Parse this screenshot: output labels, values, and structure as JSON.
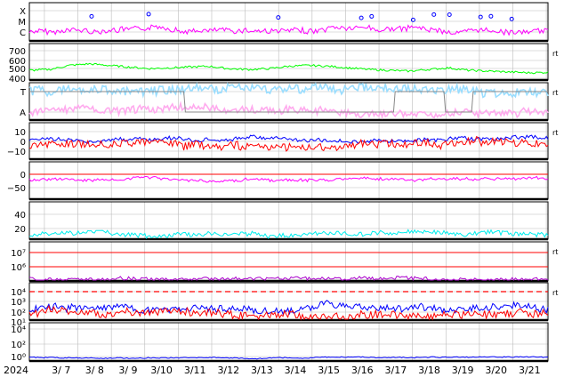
{
  "colors": {
    "magenta": "#ff00ff",
    "green": "#00ff00",
    "lightblue": "#99ddff",
    "pink": "#ffaaee",
    "gray": "#888888",
    "blue": "#0000ff",
    "red": "#ff0000",
    "cyan": "#00eeee",
    "purple": "#aa00cc",
    "grid": "#bbbbbb"
  },
  "chart_data": [
    {
      "type": "line",
      "panel": "flare-class",
      "y_ticks": [
        "X",
        "M",
        "C"
      ],
      "right_label": "",
      "note": "flare activity trace with event markers"
    },
    {
      "type": "line",
      "panel": "solar-wind-speed",
      "y_ticks": [
        "700",
        "600",
        "500",
        "400"
      ],
      "ylim": [
        300,
        750
      ],
      "right_label": "rt",
      "series": [
        {
          "values": [
            420,
            430,
            480,
            500,
            480,
            460,
            440,
            450,
            460,
            470,
            440,
            430,
            440,
            470,
            480,
            470,
            450,
            430,
            420,
            410,
            430,
            450,
            420,
            410,
            400,
            390,
            395
          ]
        }
      ]
    },
    {
      "type": "line",
      "panel": "imf-sector",
      "y_ticks": [
        "T",
        "A"
      ],
      "right_label": "rt"
    },
    {
      "type": "line",
      "panel": "imf-components",
      "y_ticks": [
        "10",
        "0",
        "−10"
      ],
      "ylim": [
        -15,
        15
      ],
      "right_label": "rt"
    },
    {
      "type": "line",
      "panel": "dst-index",
      "y_ticks": [
        "0",
        "−50"
      ],
      "ylim": [
        -90,
        15
      ],
      "right_label": ""
    },
    {
      "type": "line",
      "panel": "density",
      "y_ticks": [
        "40",
        "20"
      ],
      "ylim": [
        0,
        50
      ],
      "right_label": ""
    },
    {
      "type": "line",
      "panel": "electron-flux",
      "y_ticks": [
        "10⁷",
        "10⁶"
      ],
      "right_label": "rt"
    },
    {
      "type": "line",
      "panel": "proton-flux",
      "y_ticks": [
        "10⁴",
        "10³",
        "10²",
        "10¹"
      ],
      "right_label": "rt"
    },
    {
      "type": "line",
      "panel": "neutron",
      "y_ticks": [
        "10⁴",
        "10²",
        "10⁰"
      ],
      "right_label": ""
    }
  ],
  "x_axis": {
    "year": "2024",
    "dates": [
      "3/ 7",
      "3/ 8",
      "3/ 9",
      "3/10",
      "3/11",
      "3/12",
      "3/13",
      "3/14",
      "3/15",
      "3/16",
      "3/17",
      "3/18",
      "3/19",
      "3/20",
      "3/21"
    ]
  }
}
